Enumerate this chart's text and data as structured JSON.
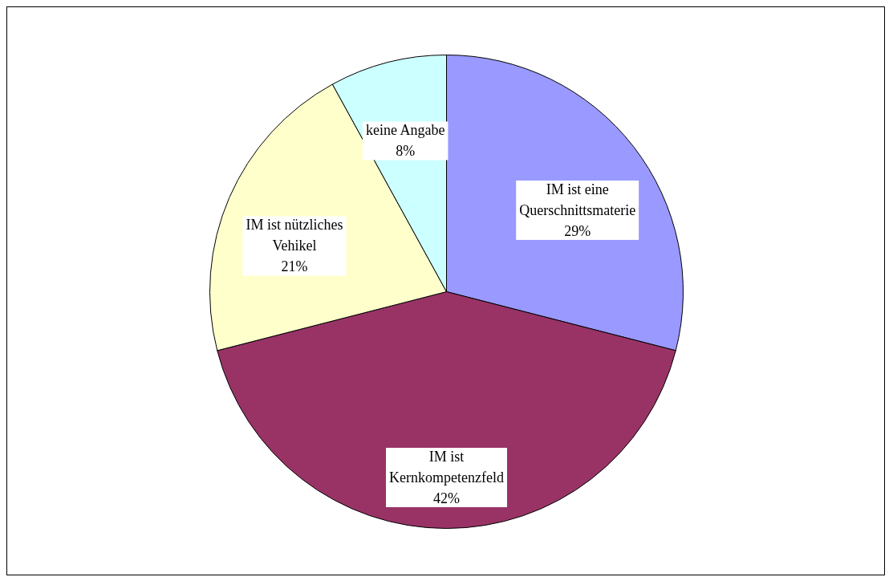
{
  "chart_data": {
    "type": "pie",
    "categories": [
      "IM ist eine Querschnittsmaterie",
      "IM ist Kernkompetenzfeld",
      "IM ist nützliches Vehikel",
      "keine Angabe"
    ],
    "values": [
      29,
      42,
      21,
      8
    ],
    "value_labels": [
      "29%",
      "42%",
      "21%",
      "8%"
    ],
    "colors": [
      "#9999ff",
      "#993366",
      "#ffffcc",
      "#ccffff"
    ]
  }
}
